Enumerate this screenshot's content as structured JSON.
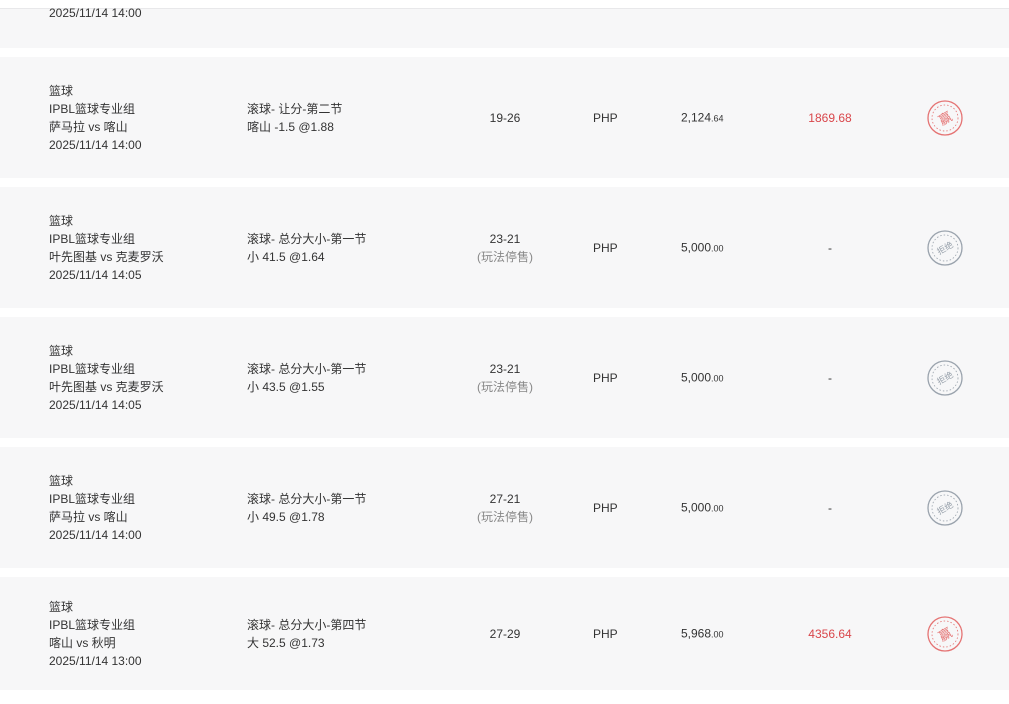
{
  "partial_row": {
    "datetime": "2025/11/14 14:00"
  },
  "rows": [
    {
      "sport": "篮球",
      "league": "IPBL篮球专业组",
      "match": "萨马拉 vs 喀山",
      "datetime": "2025/11/14 14:00",
      "market": "滚球- 让分-第二节",
      "selection": "喀山 -1.5 @1.88",
      "score": "19-26",
      "score_note": "",
      "currency": "PHP",
      "amount_int": "2,124",
      "amount_dec": ".64",
      "payout": "1869.68",
      "status": "赢",
      "status_color": "#e57373"
    },
    {
      "sport": "篮球",
      "league": "IPBL篮球专业组",
      "match": "叶先图基 vs 克麦罗沃",
      "datetime": "2025/11/14 14:05",
      "market": "滚球- 总分大小-第一节",
      "selection": "小 41.5 @1.64",
      "score": "23-21",
      "score_note": "(玩法停售)",
      "currency": "PHP",
      "amount_int": "5,000",
      "amount_dec": ".00",
      "payout": "-",
      "status": "拒绝",
      "status_color": "#9aa3ad"
    },
    {
      "sport": "篮球",
      "league": "IPBL篮球专业组",
      "match": "叶先图基 vs 克麦罗沃",
      "datetime": "2025/11/14 14:05",
      "market": "滚球- 总分大小-第一节",
      "selection": "小 43.5 @1.55",
      "score": "23-21",
      "score_note": "(玩法停售)",
      "currency": "PHP",
      "amount_int": "5,000",
      "amount_dec": ".00",
      "payout": "-",
      "status": "拒绝",
      "status_color": "#9aa3ad"
    },
    {
      "sport": "篮球",
      "league": "IPBL篮球专业组",
      "match": "萨马拉 vs 喀山",
      "datetime": "2025/11/14 14:00",
      "market": "滚球- 总分大小-第一节",
      "selection": "小 49.5 @1.78",
      "score": "27-21",
      "score_note": "(玩法停售)",
      "currency": "PHP",
      "amount_int": "5,000",
      "amount_dec": ".00",
      "payout": "-",
      "status": "拒绝",
      "status_color": "#9aa3ad"
    },
    {
      "sport": "篮球",
      "league": "IPBL篮球专业组",
      "match": "喀山 vs 秋明",
      "datetime": "2025/11/14 13:00",
      "market": "滚球- 总分大小-第四节",
      "selection": "大 52.5 @1.73",
      "score": "27-29",
      "score_note": "",
      "currency": "PHP",
      "amount_int": "5,968",
      "amount_dec": ".00",
      "payout": "4356.64",
      "status": "赢",
      "status_color": "#e57373"
    }
  ]
}
